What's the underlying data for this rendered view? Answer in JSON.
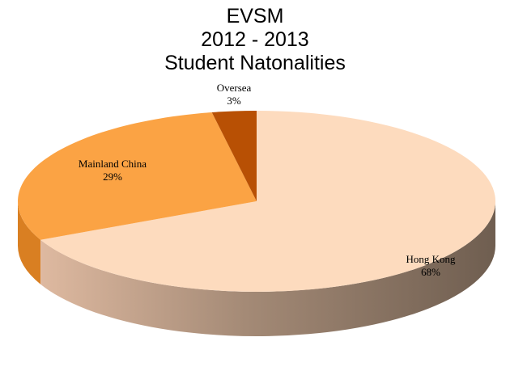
{
  "chart_data": {
    "type": "pie",
    "title_lines": [
      "EVSM",
      "2012 - 2013",
      "Student Natonalities"
    ],
    "slices": [
      {
        "label": "Hong Kong",
        "percent_label": "68%",
        "value": 68
      },
      {
        "label": "Mainland China",
        "percent_label": "29%",
        "value": 29
      },
      {
        "label": "Oversea",
        "percent_label": "3%",
        "value": 3
      }
    ],
    "colors": {
      "hong_kong": "#FDDBBE",
      "mainland_china": "#FBA344",
      "oversea": "#B85004",
      "side_light": "#DEB9A0",
      "side_dark": "#6F5E50"
    },
    "style": "3d"
  }
}
